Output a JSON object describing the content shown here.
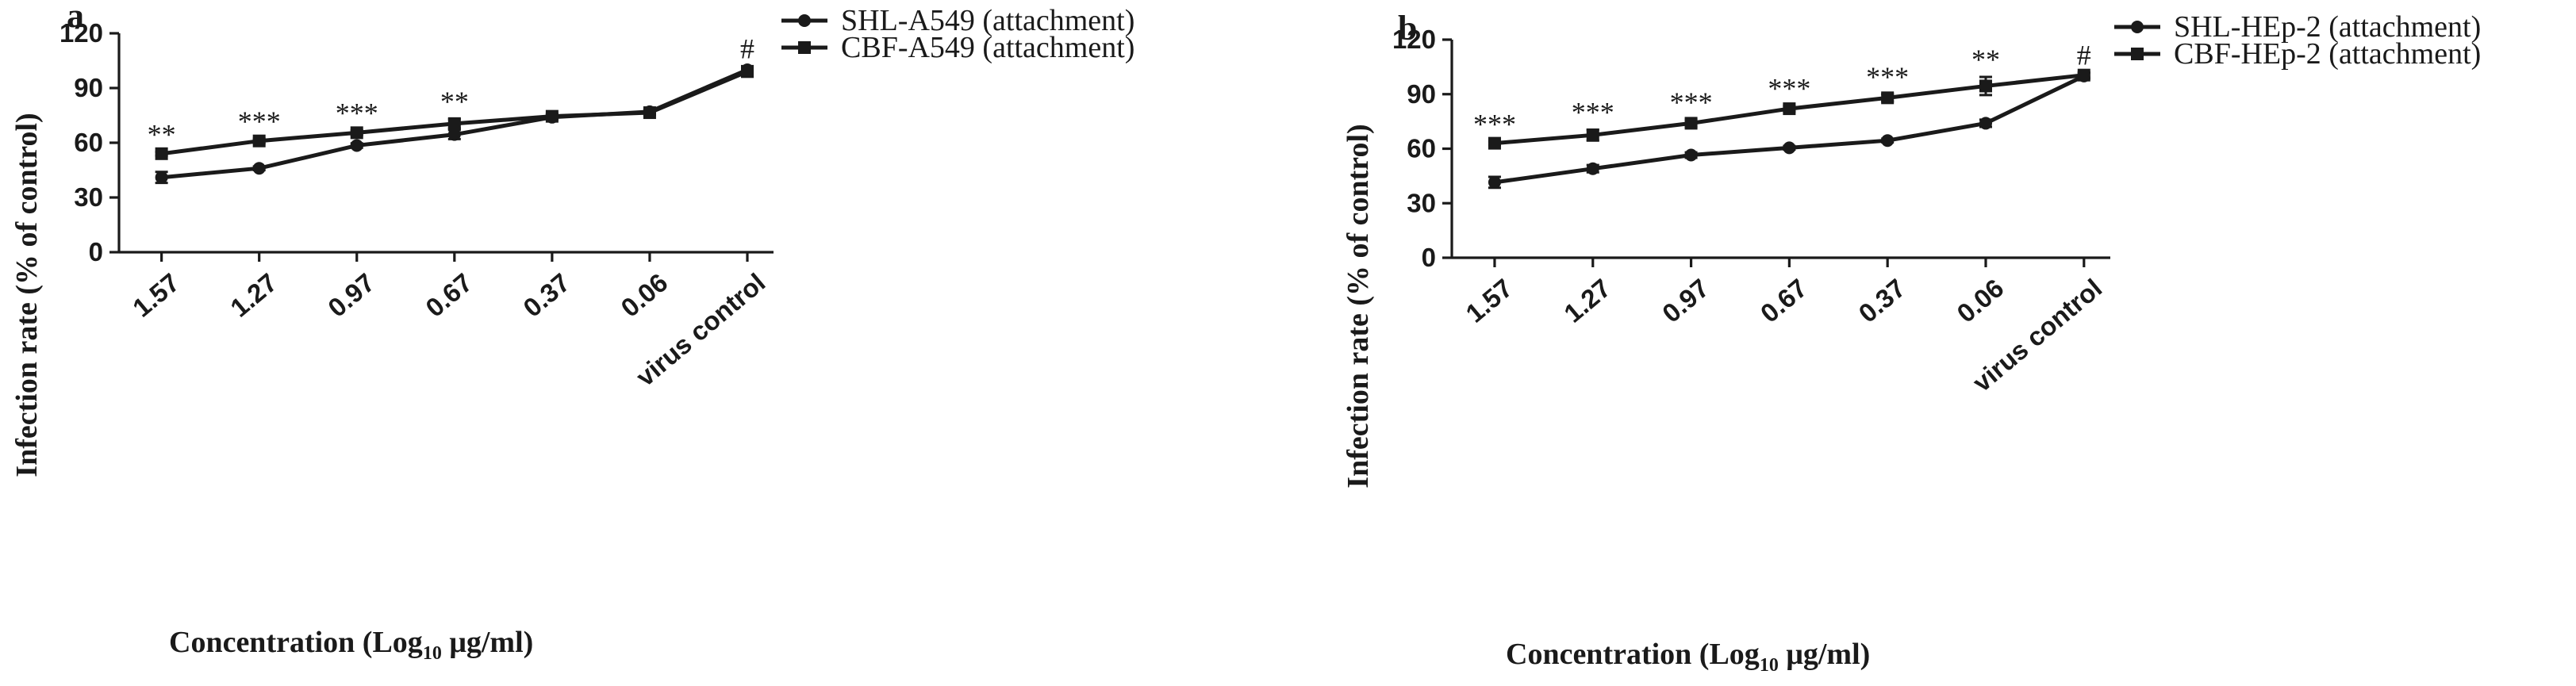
{
  "chart_data": [
    {
      "type": "line",
      "panel_label": "a",
      "categories": [
        "1.57",
        "1.27",
        "0.97",
        "0.67",
        "0.37",
        "0.06",
        "virus control"
      ],
      "ylim": [
        0,
        120
      ],
      "yticks": [
        "0",
        "30",
        "60",
        "90",
        "120"
      ],
      "ytick_values": [
        0,
        30,
        60,
        90,
        120
      ],
      "ylabel": "Infection rate (% of control)",
      "xlabel_main": "Concentration (Log",
      "xlabel_sub": "10",
      "xlabel_tail": " μg/ml)",
      "legend_position": "top-right",
      "series": [
        {
          "name": "SHL-A549 (attachment)",
          "marker": "circle",
          "values": [
            41,
            46,
            58.5,
            64.5,
            74,
            77,
            100
          ],
          "errors": [
            3,
            1,
            1.2,
            2.5,
            1.2,
            1.2,
            2
          ]
        },
        {
          "name": "CBF-A549 (attachment)",
          "marker": "square",
          "values": [
            54,
            61,
            65.5,
            70.5,
            74.5,
            76.5,
            99
          ],
          "errors": [
            1,
            1.2,
            1.2,
            2.5,
            1.2,
            1.2,
            2
          ]
        }
      ],
      "annotations": [
        "**",
        "***",
        "***",
        "**",
        "",
        "",
        "#"
      ]
    },
    {
      "type": "line",
      "panel_label": "b",
      "categories": [
        "1.57",
        "1.27",
        "0.97",
        "0.67",
        "0.37",
        "0.06",
        "virus control"
      ],
      "ylim": [
        0,
        120
      ],
      "yticks": [
        "0",
        "30",
        "60",
        "90",
        "120"
      ],
      "ytick_values": [
        0,
        30,
        60,
        90,
        120
      ],
      "ylabel": "Infection rate (% of control)",
      "xlabel_main": "Concentration (Log",
      "xlabel_sub": "10",
      "xlabel_tail": " μg/ml)",
      "legend_position": "top-right",
      "series": [
        {
          "name": "SHL-HEp-2 (attachment)",
          "marker": "circle",
          "values": [
            41.5,
            49,
            56.5,
            60.5,
            64.5,
            74,
            100
          ],
          "errors": [
            3,
            2,
            1.5,
            1,
            1,
            2,
            1.5
          ]
        },
        {
          "name": "CBF-HEp-2 (attachment)",
          "marker": "square",
          "values": [
            63,
            67.5,
            74,
            82,
            88,
            94.5,
            100.5
          ],
          "errors": [
            1,
            3,
            2,
            1.5,
            2,
            5,
            1.5
          ]
        }
      ],
      "annotations": [
        "***",
        "***",
        "***",
        "***",
        "***",
        "**",
        "#"
      ]
    }
  ]
}
